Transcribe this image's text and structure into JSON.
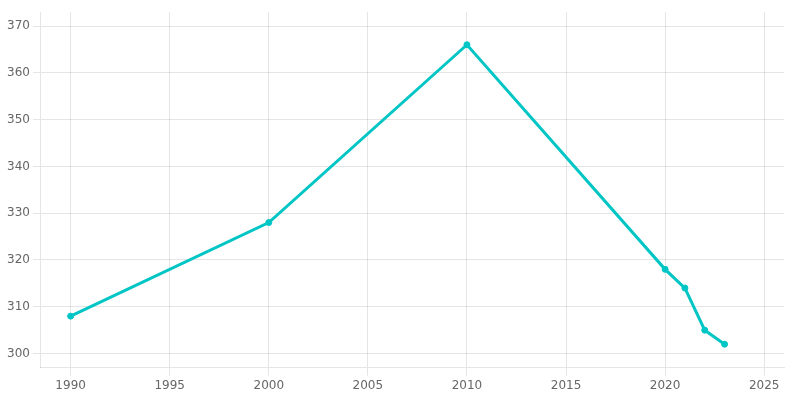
{
  "chart_data": {
    "type": "line",
    "x": [
      1990,
      2000,
      2010,
      2020,
      2021,
      2022,
      2023
    ],
    "values": [
      308,
      328,
      366,
      318,
      314,
      305,
      302
    ],
    "color": "#00C5C5",
    "marker": "circle",
    "line_style": "solid",
    "xlim": [
      1988.5,
      2026
    ],
    "xticks": [
      1990,
      1995,
      2000,
      2005,
      2010,
      2015,
      2020,
      2025
    ],
    "ylim": [
      297,
      373
    ],
    "yticks": [
      300,
      310,
      320,
      330,
      340,
      350,
      360,
      370
    ],
    "grid": true
  }
}
